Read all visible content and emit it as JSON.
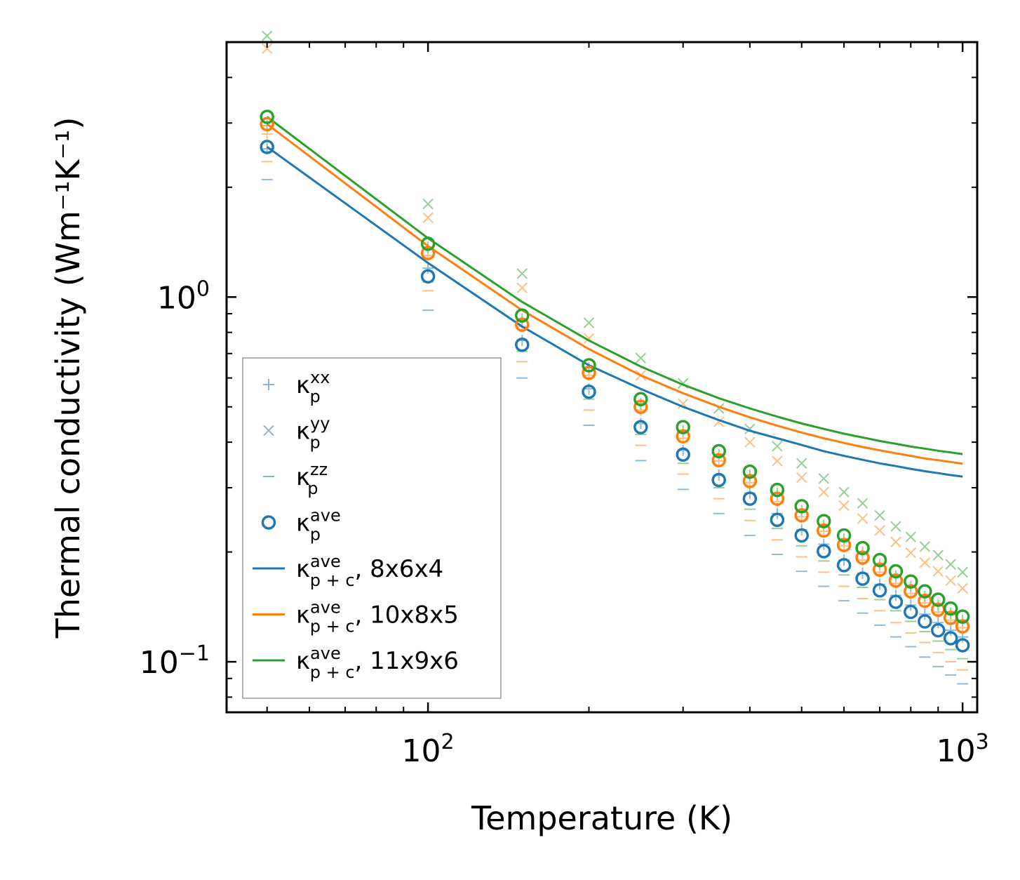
{
  "chart_data": {
    "type": "scatter",
    "title": "",
    "xlabel": "Temperature (K)",
    "ylabel": "Thermal conductivity (Wm⁻¹K⁻¹)",
    "xscale": "log",
    "yscale": "log",
    "xlim": [
      42,
      1065
    ],
    "ylim": [
      0.0727,
      5.0
    ],
    "x_ticks": [
      {
        "value": 100,
        "base": "10",
        "exp": "2"
      },
      {
        "value": 1000,
        "base": "10",
        "exp": "3"
      }
    ],
    "y_ticks": [
      {
        "value": 1.0,
        "base": "10",
        "exp": "0"
      },
      {
        "value": 0.1,
        "base": "10",
        "exp": "−1"
      }
    ],
    "colors": {
      "blue": "#1f77b4",
      "orange": "#ff7f0e",
      "green": "#2ca02c"
    },
    "x": [
      50,
      100,
      150,
      200,
      250,
      300,
      350,
      400,
      450,
      500,
      550,
      600,
      650,
      700,
      750,
      800,
      850,
      900,
      950,
      1000
    ],
    "series": [
      {
        "name": "kxx 8x6x4",
        "marker": "plus",
        "color": "#1f77b4",
        "values": [
          2.55,
          1.2,
          0.76,
          0.56,
          0.45,
          0.38,
          0.325,
          0.29,
          0.255,
          0.23,
          0.21,
          0.19,
          0.175,
          0.163,
          0.152,
          0.143,
          0.135,
          0.128,
          0.122,
          0.117
        ]
      },
      {
        "name": "kxx 10x8x5",
        "marker": "plus",
        "color": "#ff7f0e",
        "values": [
          2.8,
          1.3,
          0.83,
          0.61,
          0.49,
          0.41,
          0.355,
          0.31,
          0.275,
          0.25,
          0.228,
          0.208,
          0.19,
          0.176,
          0.164,
          0.154,
          0.145,
          0.137,
          0.13,
          0.124
        ]
      },
      {
        "name": "kxx 11x9x6",
        "marker": "plus",
        "color": "#2ca02c",
        "values": [
          2.95,
          1.37,
          0.87,
          0.64,
          0.51,
          0.43,
          0.37,
          0.325,
          0.29,
          0.26,
          0.237,
          0.217,
          0.2,
          0.185,
          0.172,
          0.161,
          0.151,
          0.143,
          0.136,
          0.13
        ]
      },
      {
        "name": "kyy 10x8x5",
        "marker": "x",
        "color": "#ff7f0e",
        "values": [
          4.8,
          1.65,
          1.06,
          0.77,
          0.61,
          0.51,
          0.455,
          0.4,
          0.355,
          0.32,
          0.292,
          0.268,
          0.247,
          0.229,
          0.213,
          0.199,
          0.187,
          0.177,
          0.167,
          0.159
        ]
      },
      {
        "name": "kyy 11x9x6",
        "marker": "x",
        "color": "#2ca02c",
        "values": [
          5.2,
          1.8,
          1.16,
          0.85,
          0.68,
          0.58,
          0.495,
          0.435,
          0.39,
          0.35,
          0.318,
          0.292,
          0.272,
          0.252,
          0.235,
          0.22,
          0.207,
          0.196,
          0.185,
          0.176
        ]
      },
      {
        "name": "kzz 8x6x4",
        "marker": "dash",
        "color": "#1f77b4",
        "values": [
          2.1,
          0.92,
          0.6,
          0.445,
          0.356,
          0.297,
          0.255,
          0.222,
          0.197,
          0.177,
          0.161,
          0.147,
          0.136,
          0.126,
          0.117,
          0.11,
          0.103,
          0.097,
          0.092,
          0.087
        ]
      },
      {
        "name": "kzz 10x8x5",
        "marker": "dash",
        "color": "#ff7f0e",
        "values": [
          2.35,
          1.04,
          0.665,
          0.49,
          0.392,
          0.327,
          0.28,
          0.244,
          0.216,
          0.194,
          0.176,
          0.161,
          0.149,
          0.138,
          0.128,
          0.12,
          0.113,
          0.106,
          0.1,
          0.095
        ]
      },
      {
        "name": "kzz 11x9x6",
        "marker": "dash",
        "color": "#2ca02c",
        "values": [
          2.5,
          1.1,
          0.71,
          0.525,
          0.42,
          0.35,
          0.3,
          0.262,
          0.232,
          0.208,
          0.189,
          0.173,
          0.16,
          0.148,
          0.138,
          0.129,
          0.121,
          0.114,
          0.108,
          0.102
        ]
      },
      {
        "name": "kave 8x6x4",
        "marker": "circle",
        "color": "#1f77b4",
        "values": [
          2.58,
          1.14,
          0.74,
          0.55,
          0.44,
          0.37,
          0.315,
          0.28,
          0.245,
          0.222,
          0.201,
          0.184,
          0.169,
          0.157,
          0.146,
          0.137,
          0.129,
          0.122,
          0.116,
          0.111
        ]
      },
      {
        "name": "kave 10x8x5",
        "marker": "circle",
        "color": "#ff7f0e",
        "values": [
          2.98,
          1.32,
          0.84,
          0.62,
          0.5,
          0.415,
          0.357,
          0.313,
          0.28,
          0.252,
          0.229,
          0.209,
          0.193,
          0.179,
          0.167,
          0.156,
          0.147,
          0.139,
          0.132,
          0.125
        ]
      },
      {
        "name": "kave 11x9x6",
        "marker": "circle",
        "color": "#2ca02c",
        "values": [
          3.12,
          1.4,
          0.89,
          0.65,
          0.525,
          0.44,
          0.378,
          0.332,
          0.296,
          0.267,
          0.243,
          0.222,
          0.205,
          0.19,
          0.177,
          0.166,
          0.156,
          0.148,
          0.14,
          0.133
        ]
      },
      {
        "name": "kp+c 8x6x4",
        "marker": "line",
        "color": "#1f77b4",
        "values": [
          2.58,
          1.24,
          0.83,
          0.65,
          0.56,
          0.5,
          0.46,
          0.43,
          0.41,
          0.393,
          0.378,
          0.367,
          0.358,
          0.35,
          0.344,
          0.338,
          0.333,
          0.329,
          0.325,
          0.322
        ]
      },
      {
        "name": "kp+c 10x8x5",
        "marker": "line",
        "color": "#ff7f0e",
        "values": [
          2.98,
          1.38,
          0.92,
          0.72,
          0.61,
          0.545,
          0.5,
          0.468,
          0.444,
          0.425,
          0.41,
          0.398,
          0.388,
          0.38,
          0.373,
          0.367,
          0.361,
          0.357,
          0.353,
          0.349
        ]
      },
      {
        "name": "kp+c 11x9x6",
        "marker": "line",
        "color": "#2ca02c",
        "values": [
          3.12,
          1.45,
          0.97,
          0.76,
          0.645,
          0.575,
          0.528,
          0.495,
          0.47,
          0.45,
          0.435,
          0.422,
          0.412,
          0.403,
          0.396,
          0.389,
          0.384,
          0.379,
          0.375,
          0.371
        ]
      }
    ],
    "legend": {
      "position": "lower-left",
      "entries": [
        {
          "marker": "plus",
          "color": "#8fb4d3",
          "sym": "κ",
          "sub": "p",
          "sup": "xx",
          "suffix": ""
        },
        {
          "marker": "x",
          "color": "#8fb4d3",
          "sym": "κ",
          "sub": "p",
          "sup": "yy",
          "suffix": ""
        },
        {
          "marker": "dash",
          "color": "#8fb4d3",
          "sym": "κ",
          "sub": "p",
          "sup": "zz",
          "suffix": ""
        },
        {
          "marker": "circle",
          "color": "#1f77b4",
          "sym": "κ",
          "sub": "p",
          "sup": "ave",
          "suffix": ""
        },
        {
          "marker": "line",
          "color": "#1f77b4",
          "sym": "κ",
          "sub": "p + c",
          "sup": "ave",
          "suffix": ", 8x6x4"
        },
        {
          "marker": "line",
          "color": "#ff7f0e",
          "sym": "κ",
          "sub": "p + c",
          "sup": "ave",
          "suffix": ", 10x8x5"
        },
        {
          "marker": "line",
          "color": "#2ca02c",
          "sym": "κ",
          "sub": "p + c",
          "sup": "ave",
          "suffix": ", 11x9x6"
        }
      ]
    }
  }
}
